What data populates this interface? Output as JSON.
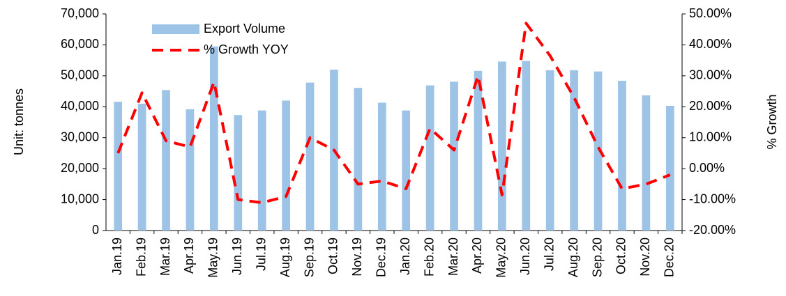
{
  "chart_data": {
    "type": "bar-line",
    "categories": [
      "Jan.19",
      "Feb.19",
      "Mar.19",
      "Apr.19",
      "May.19",
      "Jun.19",
      "Jul.19",
      "Aug.19",
      "Sep.19",
      "Oct.19",
      "Nov.19",
      "Dec.19",
      "Jan.20",
      "Feb.20",
      "Mar.20",
      "Apr.20",
      "May.20",
      "Jun.20",
      "Jul.20",
      "Aug.20",
      "Sep.20",
      "Oct.20",
      "Nov.20",
      "Dec.20"
    ],
    "series": [
      {
        "name": "Export Volume",
        "type": "bar",
        "color": "#9dc3e6",
        "values": [
          41600,
          41000,
          45400,
          39200,
          59500,
          37300,
          38800,
          42000,
          47800,
          52000,
          46100,
          41300,
          38800,
          46900,
          48100,
          51600,
          54600,
          54800,
          51800,
          51800,
          51400,
          48400,
          43700,
          40300
        ]
      },
      {
        "name": "% Growth YOY",
        "type": "line",
        "axis": "y2",
        "color": "#ff0000",
        "values": [
          5,
          24.5,
          9,
          7,
          28,
          -10,
          -11,
          -9,
          10,
          6,
          -5,
          -4,
          -6.5,
          13,
          6,
          30,
          -8.5,
          47,
          36.5,
          23,
          7,
          -6.5,
          -5,
          -2
        ]
      }
    ],
    "ylabel": "Unit: tonnes",
    "y2label": "% Growth",
    "ylim": [
      0,
      70000
    ],
    "yticks": [
      0,
      {
        "value": 10000,
        "label": "10,000"
      },
      {
        "value": 20000,
        "label": "20,000"
      },
      {
        "value": 30000,
        "label": "30,000"
      },
      {
        "value": 40000,
        "label": "40,000"
      },
      {
        "value": 50000,
        "label": "50,000"
      },
      {
        "value": 60000,
        "label": "60,000"
      },
      {
        "value": 70000,
        "label": "70,000"
      }
    ],
    "y2lim": [
      -20,
      50
    ],
    "y2ticks": [
      {
        "value": -20,
        "label": "-20.00%"
      },
      {
        "value": -10,
        "label": "-10.00%"
      },
      {
        "value": 0,
        "label": "0.00%"
      },
      {
        "value": 10,
        "label": "10.00%"
      },
      {
        "value": 20,
        "label": "20.00%"
      },
      {
        "value": 30,
        "label": "30.00%"
      },
      {
        "value": 40,
        "label": "40.00%"
      },
      {
        "value": 50,
        "label": "50.00%"
      }
    ],
    "legend": "upper left"
  }
}
